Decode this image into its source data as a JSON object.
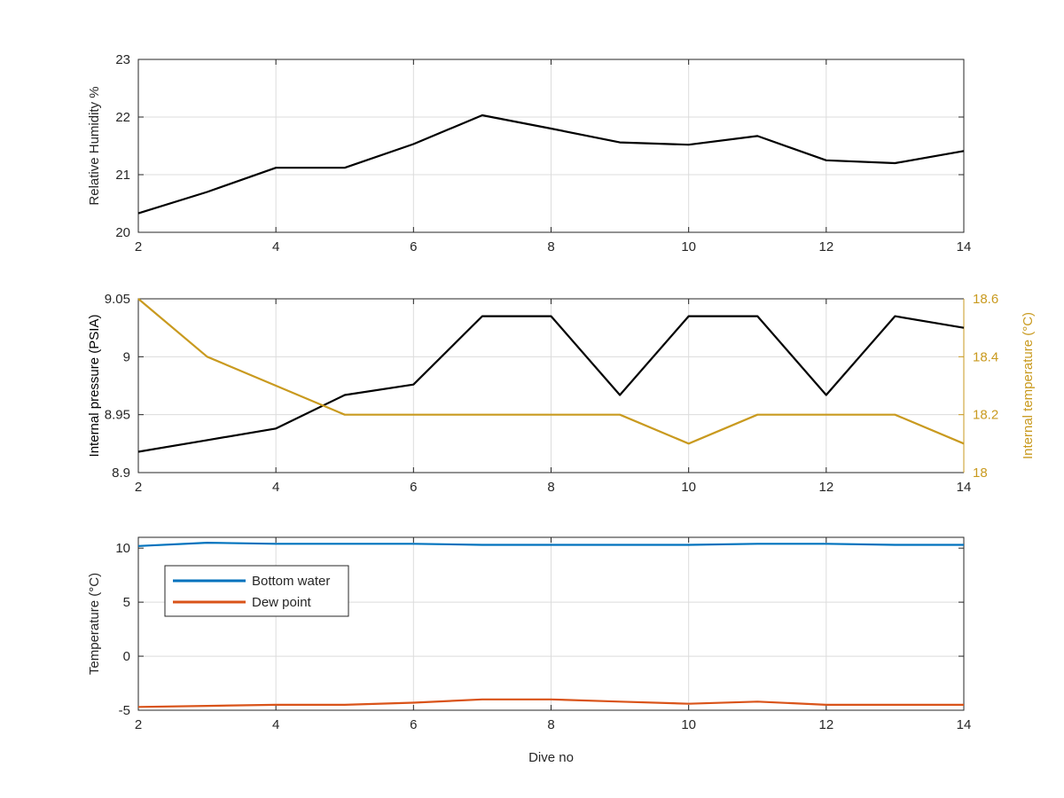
{
  "chart_data": [
    {
      "type": "line",
      "ylabel": "Relative Humidity %",
      "xlim": [
        2,
        14
      ],
      "ylim": [
        20,
        23
      ],
      "xticks": [
        "2",
        "4",
        "6",
        "8",
        "10",
        "12",
        "14"
      ],
      "yticks": [
        "20",
        "21",
        "22",
        "23"
      ],
      "grid": true,
      "series": [
        {
          "color": "#000000",
          "x": [
            2,
            3,
            4,
            5,
            6,
            7,
            8,
            9,
            10,
            11,
            12,
            13,
            14
          ],
          "y": [
            20.33,
            20.7,
            21.12,
            21.12,
            21.53,
            22.03,
            21.8,
            21.56,
            21.52,
            21.67,
            21.25,
            21.2,
            21.41
          ]
        }
      ]
    },
    {
      "type": "line",
      "ylabel": "Internal pressure (PSIA)",
      "ylabel_right": "Internal temperature (°C)",
      "xlim": [
        2,
        14
      ],
      "ylim": [
        8.9,
        9.05
      ],
      "ylim_right": [
        18,
        18.6
      ],
      "xticks": [
        "2",
        "4",
        "6",
        "8",
        "10",
        "12",
        "14"
      ],
      "yticks": [
        "8.9",
        "8.95",
        "9",
        "9.05"
      ],
      "yticks_right": [
        "18",
        "18.2",
        "18.4",
        "18.6"
      ],
      "grid": true,
      "series": [
        {
          "axis": "left",
          "color": "#000000",
          "x": [
            2,
            3,
            4,
            5,
            6,
            7,
            8,
            9,
            10,
            11,
            12,
            13,
            14
          ],
          "y": [
            8.918,
            8.928,
            8.938,
            8.967,
            8.976,
            9.035,
            9.035,
            8.967,
            9.035,
            9.035,
            8.967,
            9.035,
            9.025
          ]
        },
        {
          "axis": "right",
          "color": "#C99A1F",
          "x": [
            2,
            3,
            4,
            5,
            6,
            7,
            8,
            9,
            10,
            11,
            12,
            13,
            14
          ],
          "y": [
            18.6,
            18.4,
            18.3,
            18.2,
            18.2,
            18.2,
            18.2,
            18.2,
            18.1,
            18.2,
            18.2,
            18.2,
            18.1
          ]
        }
      ]
    },
    {
      "type": "line",
      "xlabel": "Dive no",
      "ylabel": "Temperature (°C)",
      "xlim": [
        2,
        14
      ],
      "ylim": [
        -5,
        11
      ],
      "xticks": [
        "2",
        "4",
        "6",
        "8",
        "10",
        "12",
        "14"
      ],
      "yticks": [
        "-5",
        "0",
        "5",
        "10"
      ],
      "grid": true,
      "legend_position": "upper-left",
      "series": [
        {
          "name": "Bottom water",
          "color": "#0072BD",
          "x": [
            2,
            3,
            4,
            5,
            6,
            7,
            8,
            9,
            10,
            11,
            12,
            13,
            14
          ],
          "y": [
            10.2,
            10.5,
            10.4,
            10.4,
            10.4,
            10.3,
            10.3,
            10.3,
            10.3,
            10.4,
            10.4,
            10.3,
            10.3
          ]
        },
        {
          "name": "Dew point",
          "color": "#D95319",
          "x": [
            2,
            3,
            4,
            5,
            6,
            7,
            8,
            9,
            10,
            11,
            12,
            13,
            14
          ],
          "y": [
            -4.7,
            -4.6,
            -4.5,
            -4.5,
            -4.3,
            -4.0,
            -4.0,
            -4.2,
            -4.4,
            -4.2,
            -4.5,
            -4.5,
            -4.5
          ]
        }
      ]
    }
  ]
}
